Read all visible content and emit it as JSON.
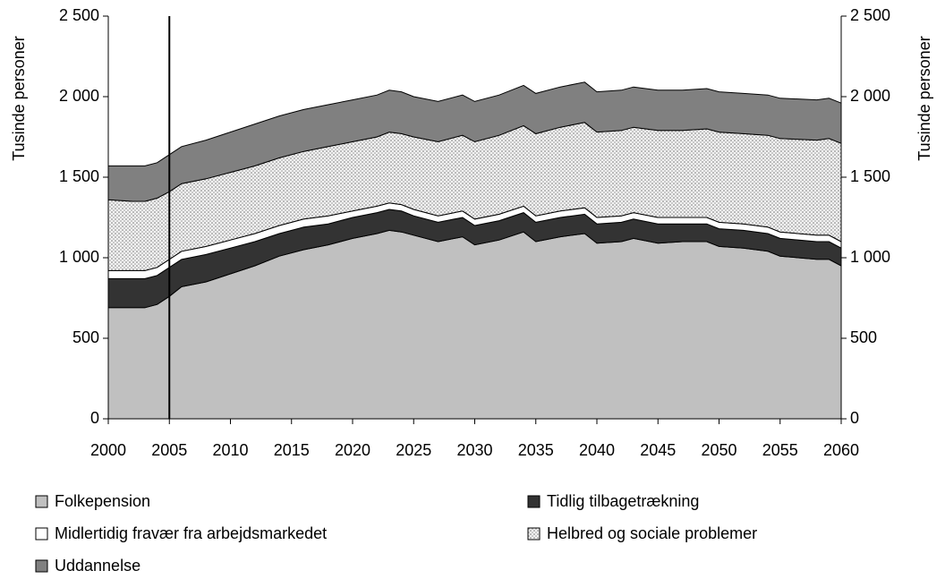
{
  "chart_data": {
    "type": "stacked-area",
    "y_label": "Tusinde personer",
    "x": [
      2000,
      2002,
      2003,
      2004,
      2005,
      2006,
      2008,
      2010,
      2012,
      2014,
      2016,
      2018,
      2020,
      2022,
      2023,
      2024,
      2025,
      2027,
      2029,
      2030,
      2032,
      2034,
      2035,
      2037,
      2039,
      2040,
      2042,
      2043,
      2045,
      2047,
      2049,
      2050,
      2052,
      2054,
      2055,
      2058,
      2059,
      2060
    ],
    "xlim": [
      2000,
      2060
    ],
    "xticks": [
      2000,
      2005,
      2010,
      2015,
      2020,
      2025,
      2030,
      2035,
      2040,
      2045,
      2050,
      2055,
      2060
    ],
    "ylim": [
      0,
      2500
    ],
    "yticks": [
      0,
      500,
      {
        "value": 1000,
        "label": "1 000"
      },
      {
        "value": 1500,
        "label": "1 500"
      },
      {
        "value": 2000,
        "label": "2 000"
      },
      {
        "value": 2500,
        "label": "2 500"
      }
    ],
    "marker_x": 2005,
    "series": [
      {
        "name": "Folkepension",
        "color": "#c0c0c0",
        "values": [
          690,
          690,
          690,
          710,
          760,
          820,
          850,
          900,
          950,
          1010,
          1050,
          1080,
          1120,
          1150,
          1170,
          1160,
          1140,
          1100,
          1130,
          1080,
          1110,
          1160,
          1100,
          1130,
          1150,
          1090,
          1100,
          1120,
          1090,
          1100,
          1100,
          1070,
          1060,
          1040,
          1010,
          990,
          990,
          950
        ]
      },
      {
        "name": "Tidlig tilbagetrækning",
        "color": "#333333",
        "values": [
          180,
          180,
          180,
          180,
          180,
          170,
          170,
          160,
          150,
          140,
          140,
          130,
          130,
          130,
          130,
          130,
          120,
          120,
          120,
          120,
          120,
          120,
          120,
          120,
          120,
          120,
          120,
          120,
          120,
          110,
          110,
          110,
          110,
          110,
          110,
          110,
          110,
          110
        ]
      },
      {
        "name": "Midlertidig fravær fra arbejdsmarkedet",
        "color": "#ffffff",
        "values": [
          50,
          50,
          50,
          50,
          50,
          50,
          50,
          50,
          50,
          50,
          50,
          50,
          40,
          40,
          40,
          40,
          40,
          40,
          40,
          40,
          40,
          40,
          40,
          40,
          40,
          40,
          40,
          40,
          40,
          40,
          40,
          40,
          40,
          40,
          40,
          40,
          40,
          40
        ]
      },
      {
        "name": "Helbred og sociale problemer",
        "color": "#e8e8e8",
        "values": [
          440,
          430,
          430,
          430,
          420,
          420,
          420,
          420,
          420,
          420,
          420,
          430,
          430,
          430,
          440,
          440,
          450,
          460,
          470,
          480,
          490,
          500,
          510,
          520,
          530,
          530,
          530,
          530,
          540,
          540,
          550,
          560,
          560,
          570,
          580,
          590,
          600,
          610
        ]
      },
      {
        "name": "Uddannelse",
        "color": "#808080",
        "values": [
          210,
          220,
          220,
          220,
          230,
          230,
          240,
          250,
          260,
          260,
          260,
          260,
          260,
          260,
          260,
          260,
          250,
          250,
          250,
          250,
          250,
          250,
          250,
          250,
          250,
          250,
          250,
          250,
          250,
          250,
          250,
          250,
          250,
          250,
          250,
          250,
          250,
          250
        ]
      }
    ]
  }
}
